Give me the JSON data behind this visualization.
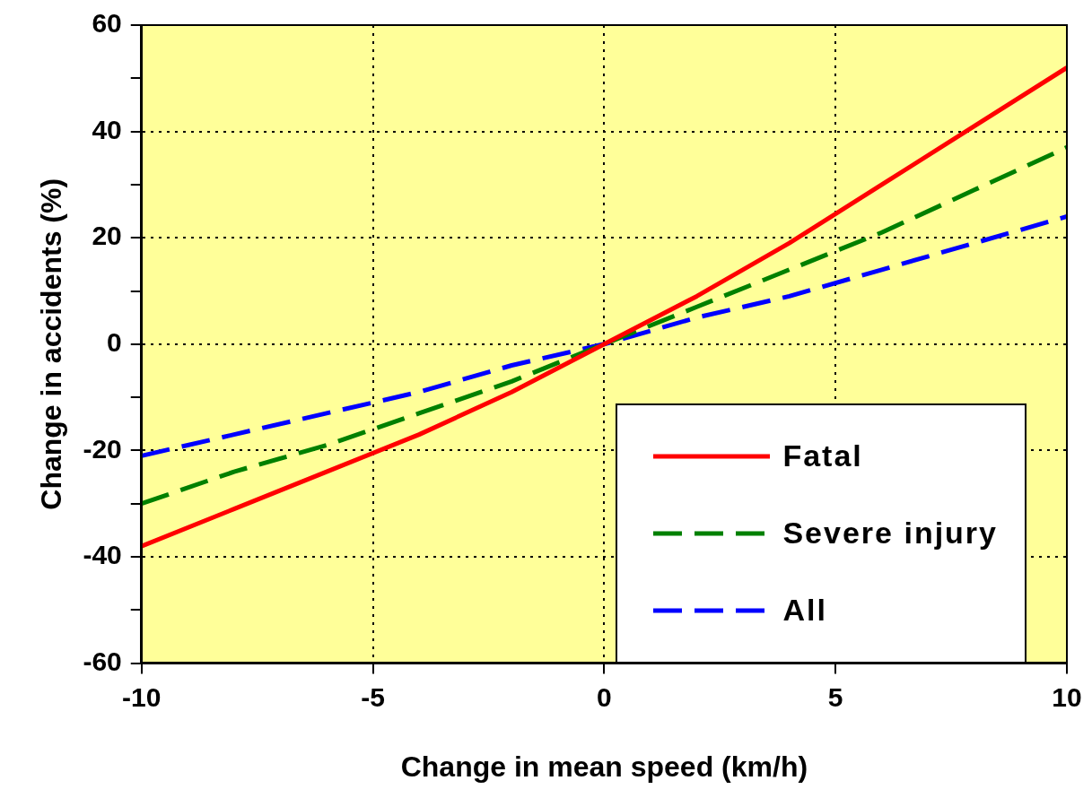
{
  "chart_data": {
    "type": "line",
    "xlabel": "Change in mean speed (km/h)",
    "ylabel": "Change in accidents (%)",
    "x": [
      -10,
      -8,
      -6,
      -4,
      -2,
      0,
      2,
      4,
      6,
      8,
      10
    ],
    "series": [
      {
        "name": "Fatal",
        "color": "#ff0000",
        "line_style": "solid",
        "values": [
          -38,
          -31,
          -24,
          -17,
          -9,
          0,
          9,
          19,
          30,
          41,
          52
        ]
      },
      {
        "name": "Severe injury",
        "color": "#008000",
        "line_style": "dashed",
        "values": [
          -30,
          -24,
          -19,
          -13,
          -7,
          0,
          7,
          14,
          21,
          29,
          37
        ]
      },
      {
        "name": "All",
        "color": "#0000ff",
        "line_style": "dashed",
        "values": [
          -21,
          -17,
          -13,
          -9,
          -4,
          0,
          5,
          9,
          14,
          19,
          24
        ]
      }
    ],
    "xlim": [
      -10,
      10
    ],
    "xticks": [
      -10,
      -5,
      0,
      5,
      10
    ],
    "ylim": [
      -60,
      60
    ],
    "yticks": [
      -60,
      {
        "value": -50,
        "label": null
      },
      -40,
      {
        "value": -30,
        "label": null
      },
      -20,
      {
        "value": -10,
        "label": null
      },
      0,
      {
        "value": 10,
        "label": null
      },
      20,
      {
        "value": 30,
        "label": null
      },
      40,
      {
        "value": 50,
        "label": null
      },
      60
    ],
    "grid": true,
    "legend": "bottom right",
    "marker": "none"
  }
}
